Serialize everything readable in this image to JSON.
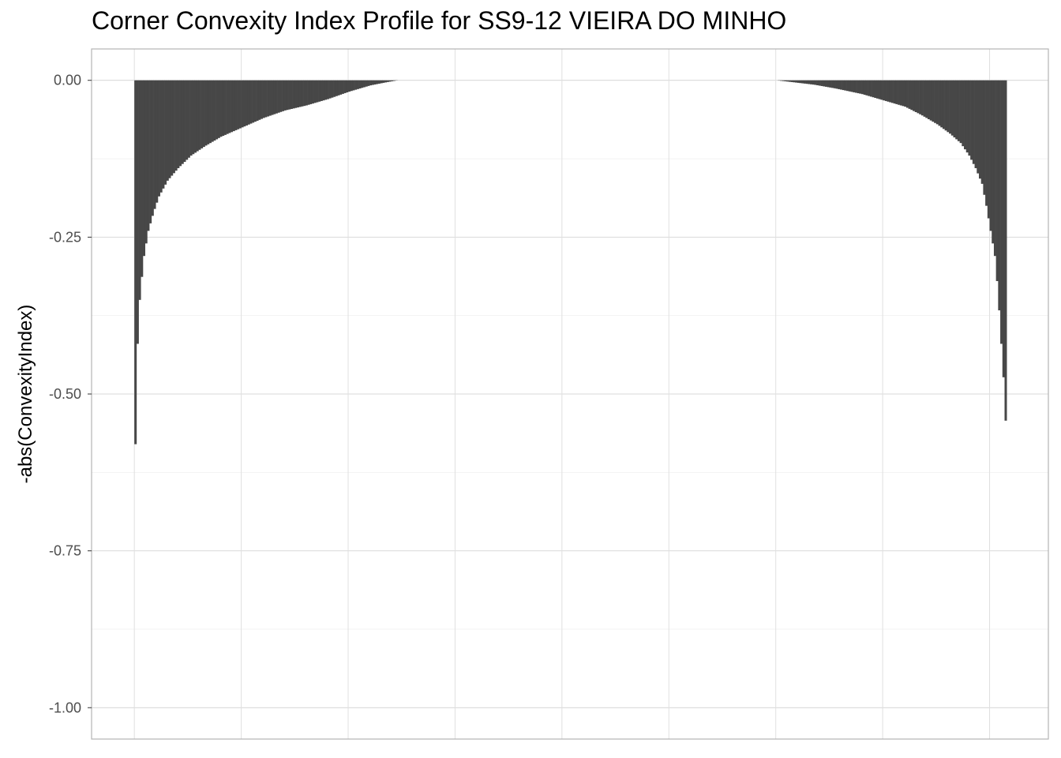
{
  "chart_data": {
    "type": "bar",
    "title": "Corner Convexity Index Profile for SS9-12 VIEIRA DO MINHO",
    "xlabel": "",
    "ylabel": "-abs(ConvexityIndex)",
    "ylim": [
      -1.05,
      0.05
    ],
    "yticks": [
      "0.00",
      "-0.25",
      "-0.50",
      "-0.75",
      "-1.00"
    ],
    "ytick_values": [
      0,
      -0.25,
      -0.5,
      -0.75,
      -1.0
    ],
    "xlim": [
      -0.4,
      8.55
    ],
    "x_gridlines": [
      0,
      1,
      2,
      3,
      4,
      5,
      6,
      7,
      8
    ],
    "grid": true,
    "legend": "none",
    "bar_color": "#474747",
    "groups": [
      {
        "name": "",
        "x_start": 0.0,
        "x_end": 2.45,
        "profile": [
          [
            0.0,
            -0.58
          ],
          [
            0.01,
            -0.5
          ],
          [
            0.02,
            -0.42
          ],
          [
            0.03,
            -0.37
          ],
          [
            0.05,
            -0.33
          ],
          [
            0.08,
            -0.28
          ],
          [
            0.12,
            -0.24
          ],
          [
            0.17,
            -0.21
          ],
          [
            0.22,
            -0.185
          ],
          [
            0.3,
            -0.16
          ],
          [
            0.4,
            -0.14
          ],
          [
            0.52,
            -0.12
          ],
          [
            0.65,
            -0.105
          ],
          [
            0.8,
            -0.09
          ],
          [
            1.0,
            -0.075
          ],
          [
            1.2,
            -0.06
          ],
          [
            1.4,
            -0.048
          ],
          [
            1.6,
            -0.04
          ],
          [
            1.8,
            -0.03
          ],
          [
            2.0,
            -0.018
          ],
          [
            2.2,
            -0.008
          ],
          [
            2.35,
            -0.003
          ],
          [
            2.45,
            0.0
          ]
        ]
      },
      {
        "name": "",
        "x_start": 6.0,
        "x_end": 8.15,
        "profile": [
          [
            6.0,
            0.0
          ],
          [
            6.15,
            -0.003
          ],
          [
            6.35,
            -0.007
          ],
          [
            6.55,
            -0.013
          ],
          [
            6.8,
            -0.022
          ],
          [
            7.0,
            -0.032
          ],
          [
            7.2,
            -0.042
          ],
          [
            7.35,
            -0.055
          ],
          [
            7.5,
            -0.07
          ],
          [
            7.62,
            -0.085
          ],
          [
            7.72,
            -0.1
          ],
          [
            7.8,
            -0.12
          ],
          [
            7.86,
            -0.14
          ],
          [
            7.92,
            -0.165
          ],
          [
            7.96,
            -0.2
          ],
          [
            8.0,
            -0.24
          ],
          [
            8.04,
            -0.28
          ],
          [
            8.07,
            -0.34
          ],
          [
            8.1,
            -0.42
          ],
          [
            8.13,
            -0.5
          ],
          [
            8.15,
            -0.585
          ]
        ]
      }
    ]
  }
}
